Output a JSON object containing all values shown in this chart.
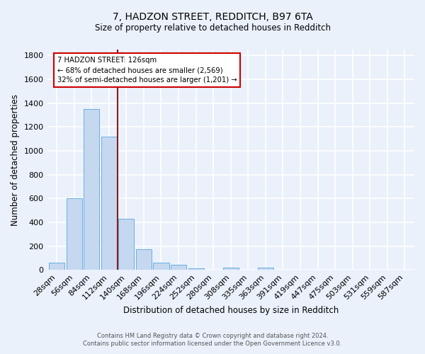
{
  "title": "7, HADZON STREET, REDDITCH, B97 6TA",
  "subtitle": "Size of property relative to detached houses in Redditch",
  "xlabel": "Distribution of detached houses by size in Redditch",
  "ylabel": "Number of detached properties",
  "footnote1": "Contains HM Land Registry data © Crown copyright and database right 2024.",
  "footnote2": "Contains public sector information licensed under the Open Government Licence v3.0.",
  "bins": [
    "28sqm",
    "56sqm",
    "84sqm",
    "112sqm",
    "140sqm",
    "168sqm",
    "196sqm",
    "224sqm",
    "252sqm",
    "280sqm",
    "308sqm",
    "335sqm",
    "363sqm",
    "391sqm",
    "419sqm",
    "447sqm",
    "475sqm",
    "503sqm",
    "531sqm",
    "559sqm",
    "587sqm"
  ],
  "values": [
    60,
    600,
    1350,
    1120,
    430,
    175,
    62,
    40,
    15,
    0,
    18,
    0,
    20,
    0,
    0,
    0,
    0,
    0,
    0,
    0,
    0
  ],
  "bar_color": "#c5d8f0",
  "bar_edge_color": "#6aaee0",
  "bg_color": "#eaf1fb",
  "grid_color": "#ffffff",
  "vline_color": "#8b1a1a",
  "annotation_text": "7 HADZON STREET: 126sqm\n← 68% of detached houses are smaller (2,569)\n32% of semi-detached houses are larger (1,201) →",
  "annotation_box_color": "#ffffff",
  "annotation_box_edge": "#cc0000",
  "ylim": [
    0,
    1850
  ],
  "yticks": [
    0,
    200,
    400,
    600,
    800,
    1000,
    1200,
    1400,
    1600,
    1800
  ]
}
